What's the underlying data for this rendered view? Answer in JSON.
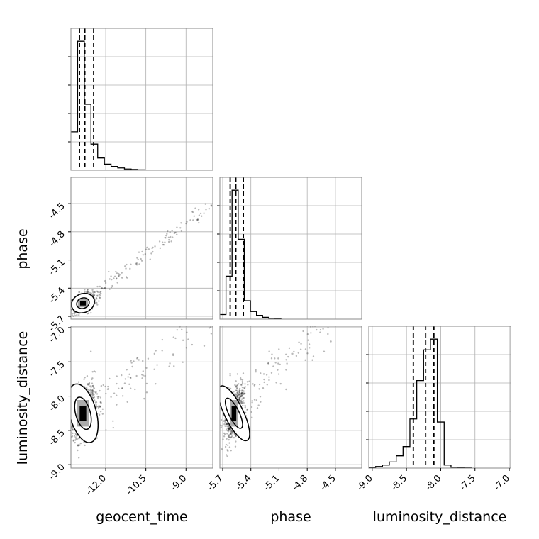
{
  "chart_data": {
    "type": "corner",
    "parameters": [
      {
        "name": "geocent_time",
        "label": "geocent_time",
        "range": [
          -13.3,
          -8.0
        ],
        "ticks": [
          "-12.0",
          "-10.5",
          "-9.0"
        ],
        "tick_values": [
          -12.0,
          -10.5,
          -9.0
        ],
        "quantiles": [
          -12.98,
          -12.78,
          -12.45
        ]
      },
      {
        "name": "phase",
        "label": "phase",
        "range": [
          -5.73,
          -4.22
        ],
        "ticks": [
          "-5.7",
          "-5.4",
          "-5.1",
          "-4.8",
          "-4.5"
        ],
        "tick_values": [
          -5.7,
          -5.4,
          -5.1,
          -4.8,
          -4.5
        ],
        "quantiles": [
          -5.62,
          -5.56,
          -5.48
        ]
      },
      {
        "name": "luminosity_distance",
        "label": "luminosity_distance",
        "range": [
          -9.05,
          -6.98
        ],
        "ticks": [
          "-9.0",
          "-8.5",
          "-8.0",
          "-7.5",
          "-7.0"
        ],
        "tick_values": [
          -9.0,
          -8.5,
          -8.0,
          -7.5,
          -7.0
        ],
        "quantiles": [
          -8.4,
          -8.22,
          -8.1
        ]
      }
    ],
    "histograms": [
      {
        "param": "geocent_time",
        "bin_edges": [
          -13.3,
          -13.05,
          -12.8,
          -12.55,
          -12.3,
          -12.05,
          -11.8,
          -11.55,
          -11.3,
          -11.05,
          -10.8,
          -10.55,
          -10.3
        ],
        "counts": [
          0.25,
          0.84,
          0.43,
          0.17,
          0.08,
          0.04,
          0.025,
          0.015,
          0.008,
          0.005,
          0.003,
          0.001
        ]
      },
      {
        "param": "phase",
        "bin_edges": [
          -5.73,
          -5.665,
          -5.6,
          -5.535,
          -5.47,
          -5.405,
          -5.34,
          -5.275,
          -5.21,
          -5.145,
          -5.08
        ],
        "counts": [
          0.03,
          0.28,
          0.84,
          0.52,
          0.12,
          0.05,
          0.025,
          0.012,
          0.006,
          0.003
        ]
      },
      {
        "param": "luminosity_distance",
        "bin_edges": [
          -9.05,
          -8.95,
          -8.85,
          -8.75,
          -8.65,
          -8.55,
          -8.45,
          -8.35,
          -8.25,
          -8.15,
          -8.05,
          -7.95,
          -7.85,
          -7.75,
          -7.65,
          -7.55
        ],
        "counts": [
          0.005,
          0.01,
          0.02,
          0.04,
          0.08,
          0.14,
          0.32,
          0.57,
          0.77,
          0.84,
          0.3,
          0.02,
          0.006,
          0.002,
          0.001
        ]
      }
    ],
    "pairs": [
      {
        "x": "geocent_time",
        "y": "phase",
        "center": [
          -12.85,
          -5.56
        ],
        "sd": [
          0.22,
          0.05
        ],
        "rho": 0.45,
        "trend_slope": 0.22
      },
      {
        "x": "geocent_time",
        "y": "luminosity_distance",
        "center": [
          -12.85,
          -8.25
        ],
        "sd": [
          0.25,
          0.22
        ],
        "rho": 0.3,
        "trend_slope": 0.3
      },
      {
        "x": "phase",
        "y": "luminosity_distance",
        "center": [
          -5.58,
          -8.25
        ],
        "sd": [
          0.05,
          0.22
        ],
        "rho": 0.55,
        "trend_slope": 1.33
      }
    ],
    "colors": {
      "line": "#000000",
      "grid": "#b0b0b0",
      "points": "#000000",
      "quantile": "#000000"
    },
    "grid": true,
    "quantile_style": "dashed",
    "contour_levels": 2
  }
}
